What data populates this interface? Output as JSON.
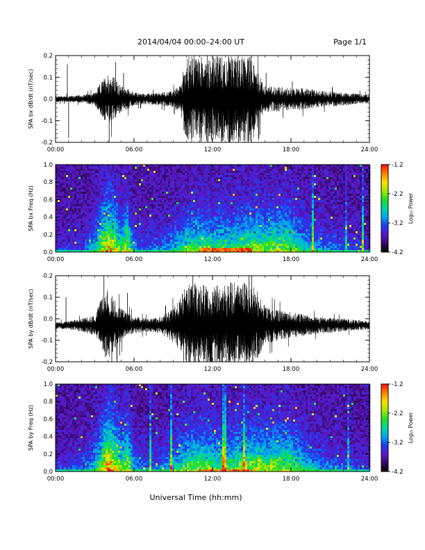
{
  "header": {
    "title": "2014/04/04  00:00–24:00 UT",
    "page": "Page 1/1"
  },
  "footer": {
    "xlabel": "Universal Time (hh:mm)"
  },
  "colorbar": {
    "label": "Log₁₀ Power",
    "tick_labels": [
      "-1.2",
      "-2.2",
      "-3.2",
      "-4.2"
    ],
    "range": [
      -4.2,
      -1.2
    ],
    "colors": [
      "#000000",
      "#3a0a6e",
      "#5a18c8",
      "#1e3cf0",
      "#00a8f0",
      "#00d8a0",
      "#20e020",
      "#a8e800",
      "#ffe000",
      "#ff8000",
      "#ff1000"
    ]
  },
  "chart_data": [
    {
      "type": "line",
      "name": "bx-waveform",
      "ylabel": "SPA bx dB/dt (nT/sec)",
      "ylim": [
        -0.2,
        0.2
      ],
      "yticks": [
        "0.2",
        "0.1",
        "0.0",
        "-0.1",
        "-0.2"
      ],
      "xlim": [
        0,
        24
      ],
      "xticks": [
        "00:00",
        "06:00",
        "12:00",
        "18:00",
        "24:00"
      ],
      "baseline": 0.0,
      "envelope": {
        "hours": [
          0,
          1,
          2,
          3,
          3.5,
          4,
          4.5,
          5,
          5.5,
          6,
          7,
          8,
          9,
          9.5,
          10,
          11,
          12,
          13,
          14,
          15,
          15.5,
          16,
          17,
          18,
          19,
          20,
          21,
          22,
          23,
          24
        ],
        "amplitude": [
          0.015,
          0.015,
          0.018,
          0.03,
          0.08,
          0.12,
          0.1,
          0.06,
          0.05,
          0.03,
          0.025,
          0.03,
          0.04,
          0.06,
          0.2,
          0.2,
          0.2,
          0.2,
          0.2,
          0.2,
          0.12,
          0.06,
          0.06,
          0.05,
          0.05,
          0.04,
          0.035,
          0.03,
          0.025,
          0.02
        ]
      },
      "spikes": [
        [
          0.9,
          0.16
        ],
        [
          1.0,
          -0.18
        ],
        [
          4.1,
          -0.2
        ],
        [
          4.6,
          0.17
        ],
        [
          5.2,
          0.12
        ],
        [
          16.1,
          0.12
        ],
        [
          18.1,
          0.08
        ]
      ]
    },
    {
      "type": "heatmap",
      "name": "bx-spectrogram",
      "ylabel": "SPA bx Freq (Hz)",
      "ylim": [
        0,
        1.0
      ],
      "yticks": [
        "1.0",
        "0.8",
        "0.6",
        "0.4",
        "0.2",
        "0.0"
      ],
      "xlim": [
        0,
        24
      ],
      "xticks": [
        "00:00",
        "06:00",
        "12:00",
        "18:00",
        "24:00"
      ],
      "value_range": [
        -4.2,
        -1.2
      ],
      "activity": {
        "hours": [
          0,
          1,
          2,
          3,
          3.5,
          4,
          4.5,
          5,
          5.5,
          6,
          7,
          8,
          9,
          10,
          11,
          12,
          13,
          14,
          15,
          16,
          17,
          18,
          19,
          20,
          21,
          22,
          23,
          24
        ],
        "level": [
          0.1,
          0.15,
          0.15,
          0.35,
          0.6,
          0.8,
          0.7,
          0.5,
          0.65,
          0.25,
          0.2,
          0.25,
          0.35,
          0.5,
          0.55,
          0.5,
          0.5,
          0.55,
          0.6,
          0.55,
          0.6,
          0.55,
          0.4,
          0.3,
          0.25,
          0.2,
          0.15,
          0.12
        ]
      },
      "peak_band": {
        "hours": [
          11,
          15
        ],
        "freq_max": 0.03
      }
    },
    {
      "type": "line",
      "name": "by-waveform",
      "ylabel": "SPA by dB/dt (nT/sec)",
      "ylim": [
        -0.2,
        0.2
      ],
      "yticks": [
        "0.2",
        "0.1",
        "0.0",
        "-0.1",
        "-0.2"
      ],
      "xlim": [
        0,
        24
      ],
      "xticks": [
        "00:00",
        "06:00",
        "12:00",
        "18:00",
        "24:00"
      ],
      "baseline": -0.03,
      "envelope": {
        "hours": [
          0,
          1,
          2,
          3,
          3.5,
          4,
          4.5,
          5,
          5.5,
          6,
          7,
          8,
          9,
          9.5,
          10,
          11,
          12,
          13,
          14,
          15,
          15.5,
          16,
          17,
          18,
          19,
          20,
          21,
          22,
          23,
          24
        ],
        "amplitude": [
          0.015,
          0.02,
          0.03,
          0.05,
          0.12,
          0.17,
          0.12,
          0.08,
          0.06,
          0.04,
          0.03,
          0.04,
          0.08,
          0.12,
          0.19,
          0.2,
          0.2,
          0.2,
          0.2,
          0.2,
          0.15,
          0.09,
          0.07,
          0.06,
          0.05,
          0.04,
          0.035,
          0.03,
          0.025,
          0.02
        ]
      },
      "spikes": [
        [
          0.8,
          0.1
        ],
        [
          3.7,
          0.2
        ],
        [
          4.3,
          -0.2
        ],
        [
          4.9,
          -0.17
        ],
        [
          5.5,
          0.12
        ],
        [
          10.5,
          0.2
        ],
        [
          14.8,
          0.2
        ]
      ]
    },
    {
      "type": "heatmap",
      "name": "by-spectrogram",
      "ylabel": "SPA by Freq (Hz)",
      "ylim": [
        0,
        1.0
      ],
      "yticks": [
        "1.0",
        "0.8",
        "0.6",
        "0.4",
        "0.2",
        "0.0"
      ],
      "xlim": [
        0,
        24
      ],
      "xticks": [
        "00:00",
        "06:00",
        "12:00",
        "18:00",
        "24:00"
      ],
      "value_range": [
        -4.2,
        -1.2
      ],
      "activity": {
        "hours": [
          0,
          1,
          2,
          3,
          3.5,
          4,
          4.5,
          5,
          5.5,
          6,
          7,
          8,
          9,
          10,
          11,
          12,
          13,
          14,
          15,
          16,
          17,
          18,
          19,
          20,
          21,
          22,
          23,
          24
        ],
        "level": [
          0.12,
          0.2,
          0.2,
          0.4,
          0.65,
          0.85,
          0.75,
          0.55,
          0.7,
          0.3,
          0.22,
          0.28,
          0.38,
          0.55,
          0.6,
          0.55,
          0.52,
          0.58,
          0.62,
          0.58,
          0.62,
          0.58,
          0.42,
          0.32,
          0.26,
          0.22,
          0.16,
          0.12
        ]
      },
      "peak_band": {
        "hours": [
          11,
          15
        ],
        "freq_max": 0.02
      }
    }
  ]
}
